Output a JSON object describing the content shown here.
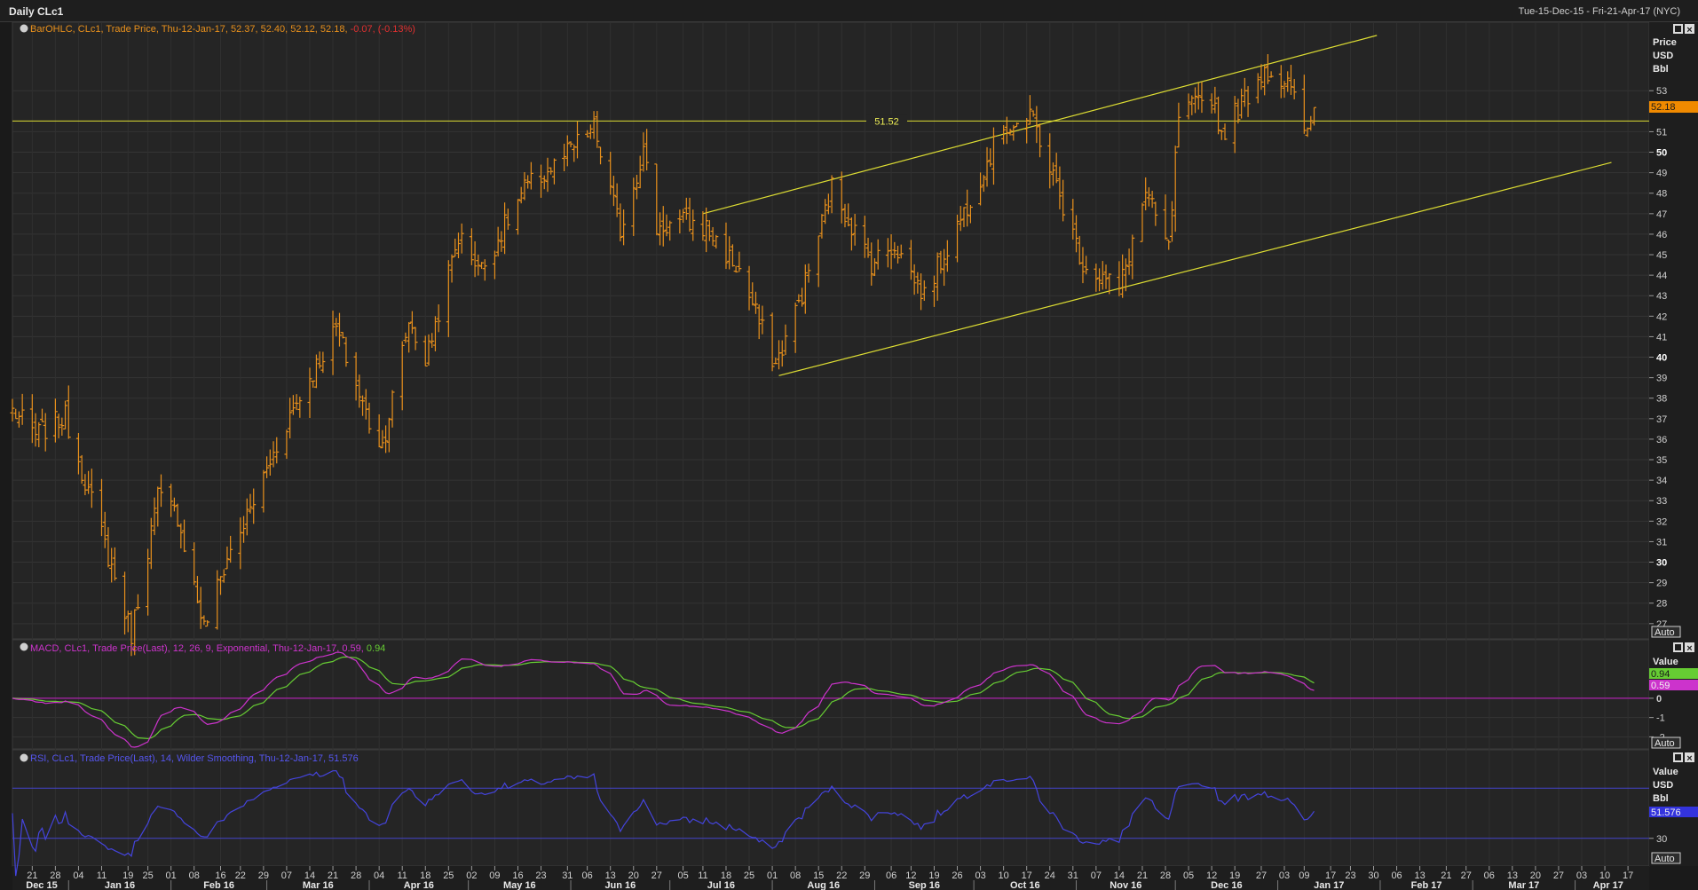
{
  "window": {
    "title": "Daily CLc1",
    "range": "Tue-15-Dec-15 - Fri-21-Apr-17 (NYC)"
  },
  "panels": {
    "price": {
      "legend": "BarOHLC, CLc1, Trade Price, Thu-12-Jan-17, 52.37, 52.40, 52.12, 52.18,",
      "legend_change": "-0.07, (-0.13%)",
      "axis_title": [
        "Price",
        "USD",
        "Bbl"
      ],
      "last_value": "52.18",
      "hline_label": "51.52",
      "auto_label": "Auto"
    },
    "macd": {
      "legend": "MACD, CLc1, Trade Price(Last),  12, 26, 9, Exponential, Thu-12-Jan-17, 0.59,",
      "legend_signal": "0.94",
      "axis_title": [
        "Value"
      ],
      "macd_value": "0.59",
      "signal_value": "0.94",
      "auto_label": "Auto"
    },
    "rsi": {
      "legend": "RSI, CLc1, Trade Price(Last),  14, Wilder Smoothing, Thu-12-Jan-17, 51.576",
      "axis_title": [
        "Value",
        "USD",
        "Bbl"
      ],
      "last_value": "51.576",
      "auto_label": "Auto"
    }
  },
  "colors": {
    "bars": "#e8901c",
    "macd": "#cc33cc",
    "signal": "#66cc33",
    "rsi": "#4444dd",
    "trend": "#dddd33",
    "background": "#252525"
  },
  "chart_data": {
    "type": "bar",
    "price_axis": {
      "min": 26.3,
      "max": 56.3,
      "ticks": [
        27,
        28,
        29,
        30,
        31,
        32,
        33,
        34,
        35,
        36,
        37,
        38,
        39,
        40,
        41,
        42,
        43,
        44,
        45,
        46,
        47,
        48,
        49,
        50,
        51,
        53
      ],
      "bold_ticks": [
        30,
        40,
        50
      ]
    },
    "day_labels": [
      "21",
      "28",
      "04",
      "11",
      "19",
      "25",
      "01",
      "08",
      "16",
      "22",
      "29",
      "07",
      "14",
      "21",
      "28",
      "04",
      "11",
      "18",
      "25",
      "02",
      "09",
      "16",
      "23",
      "31",
      "06",
      "13",
      "20",
      "27",
      "05",
      "11",
      "18",
      "25",
      "01",
      "08",
      "15",
      "22",
      "29",
      "06",
      "12",
      "19",
      "26",
      "03",
      "10",
      "17",
      "24",
      "31",
      "07",
      "14",
      "21",
      "28",
      "05",
      "12",
      "19",
      "27",
      "03",
      "09",
      "17",
      "23",
      "30",
      "06",
      "13",
      "21",
      "27",
      "06",
      "13",
      "20",
      "27",
      "03",
      "10",
      "17"
    ],
    "month_labels": [
      "Dec 15",
      "Jan 16",
      "Feb 16",
      "Mar 16",
      "Apr 16",
      "May 16",
      "Jun 16",
      "Jul 16",
      "Aug 16",
      "Sep 16",
      "Oct 16",
      "Nov 16",
      "Dec 16",
      "Jan 17",
      "Feb 17",
      "Mar 17",
      "Apr 17"
    ],
    "close_anchors": [
      {
        "date": "2015-12-15",
        "value": 37.4
      },
      {
        "date": "2015-12-22",
        "value": 36.2
      },
      {
        "date": "2015-12-31",
        "value": 37.1
      },
      {
        "date": "2016-01-11",
        "value": 31.4
      },
      {
        "date": "2016-01-20",
        "value": 26.5
      },
      {
        "date": "2016-01-28",
        "value": 33.2
      },
      {
        "date": "2016-02-03",
        "value": 32.3
      },
      {
        "date": "2016-02-11",
        "value": 26.8
      },
      {
        "date": "2016-02-18",
        "value": 30.2
      },
      {
        "date": "2016-02-24",
        "value": 32.2
      },
      {
        "date": "2016-03-08",
        "value": 37.2
      },
      {
        "date": "2016-03-22",
        "value": 41.4
      },
      {
        "date": "2016-04-01",
        "value": 36.8
      },
      {
        "date": "2016-04-05",
        "value": 35.7
      },
      {
        "date": "2016-04-13",
        "value": 41.8
      },
      {
        "date": "2016-04-18",
        "value": 39.8
      },
      {
        "date": "2016-04-28",
        "value": 45.9
      },
      {
        "date": "2016-05-05",
        "value": 44.3
      },
      {
        "date": "2016-05-18",
        "value": 48.2
      },
      {
        "date": "2016-05-27",
        "value": 49.3
      },
      {
        "date": "2016-06-08",
        "value": 51.2
      },
      {
        "date": "2016-06-16",
        "value": 46.2
      },
      {
        "date": "2016-06-23",
        "value": 50.1
      },
      {
        "date": "2016-06-27",
        "value": 46.3
      },
      {
        "date": "2016-07-05",
        "value": 46.6
      },
      {
        "date": "2016-07-12",
        "value": 46.3
      },
      {
        "date": "2016-07-22",
        "value": 44.2
      },
      {
        "date": "2016-08-02",
        "value": 39.6
      },
      {
        "date": "2016-08-10",
        "value": 43.1
      },
      {
        "date": "2016-08-19",
        "value": 48.3
      },
      {
        "date": "2016-08-31",
        "value": 44.6
      },
      {
        "date": "2016-09-07",
        "value": 45.5
      },
      {
        "date": "2016-09-16",
        "value": 43.0
      },
      {
        "date": "2016-09-28",
        "value": 47.1
      },
      {
        "date": "2016-10-10",
        "value": 51.3
      },
      {
        "date": "2016-10-19",
        "value": 51.6
      },
      {
        "date": "2016-11-03",
        "value": 44.6
      },
      {
        "date": "2016-11-14",
        "value": 43.3
      },
      {
        "date": "2016-11-22",
        "value": 48.0
      },
      {
        "date": "2016-11-29",
        "value": 45.2
      },
      {
        "date": "2016-12-02",
        "value": 51.7
      },
      {
        "date": "2016-12-12",
        "value": 52.8
      },
      {
        "date": "2016-12-15",
        "value": 50.9
      },
      {
        "date": "2016-12-28",
        "value": 54.1
      },
      {
        "date": "2017-01-04",
        "value": 53.3
      },
      {
        "date": "2017-01-10",
        "value": 50.8
      },
      {
        "date": "2017-01-12",
        "value": 52.18
      }
    ],
    "horizontal_lines": [
      51.52
    ],
    "trendlines": [
      {
        "from": {
          "date": "2016-07-11",
          "value": 47.0
        },
        "to": {
          "date": "2017-01-31",
          "value": 55.7
        }
      },
      {
        "from": {
          "date": "2016-08-03",
          "value": 39.1
        },
        "to": {
          "date": "2017-04-12",
          "value": 49.5
        }
      }
    ],
    "macd": {
      "zero": 0,
      "ticks": [
        0,
        -1,
        -2
      ],
      "last": 0.59,
      "signal_last": 0.94
    },
    "rsi": {
      "levels": [
        70,
        30
      ],
      "ticks": [
        30
      ],
      "last": 51.576
    }
  }
}
